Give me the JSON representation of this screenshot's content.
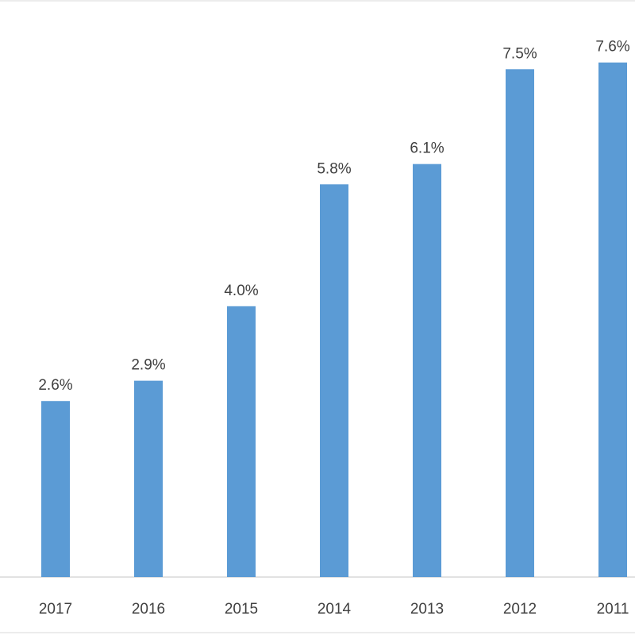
{
  "chart_data": {
    "type": "bar",
    "title": "",
    "xlabel": "",
    "ylabel": "",
    "categories": [
      "2017",
      "2016",
      "2015",
      "2014",
      "2013",
      "2012",
      "2011"
    ],
    "values": [
      2.6,
      2.9,
      4.0,
      5.8,
      6.1,
      7.5,
      7.6
    ],
    "value_labels": [
      "2.6%",
      "2.9%",
      "4.0%",
      "5.8%",
      "6.1%",
      "7.5%",
      "7.6%"
    ],
    "unit": "%",
    "ylim": [
      0,
      8.6
    ],
    "grid": false,
    "legend": "none",
    "colors": {
      "bar": "#5b9bd5",
      "text": "#404040",
      "axis": "#d9d9d9"
    }
  }
}
